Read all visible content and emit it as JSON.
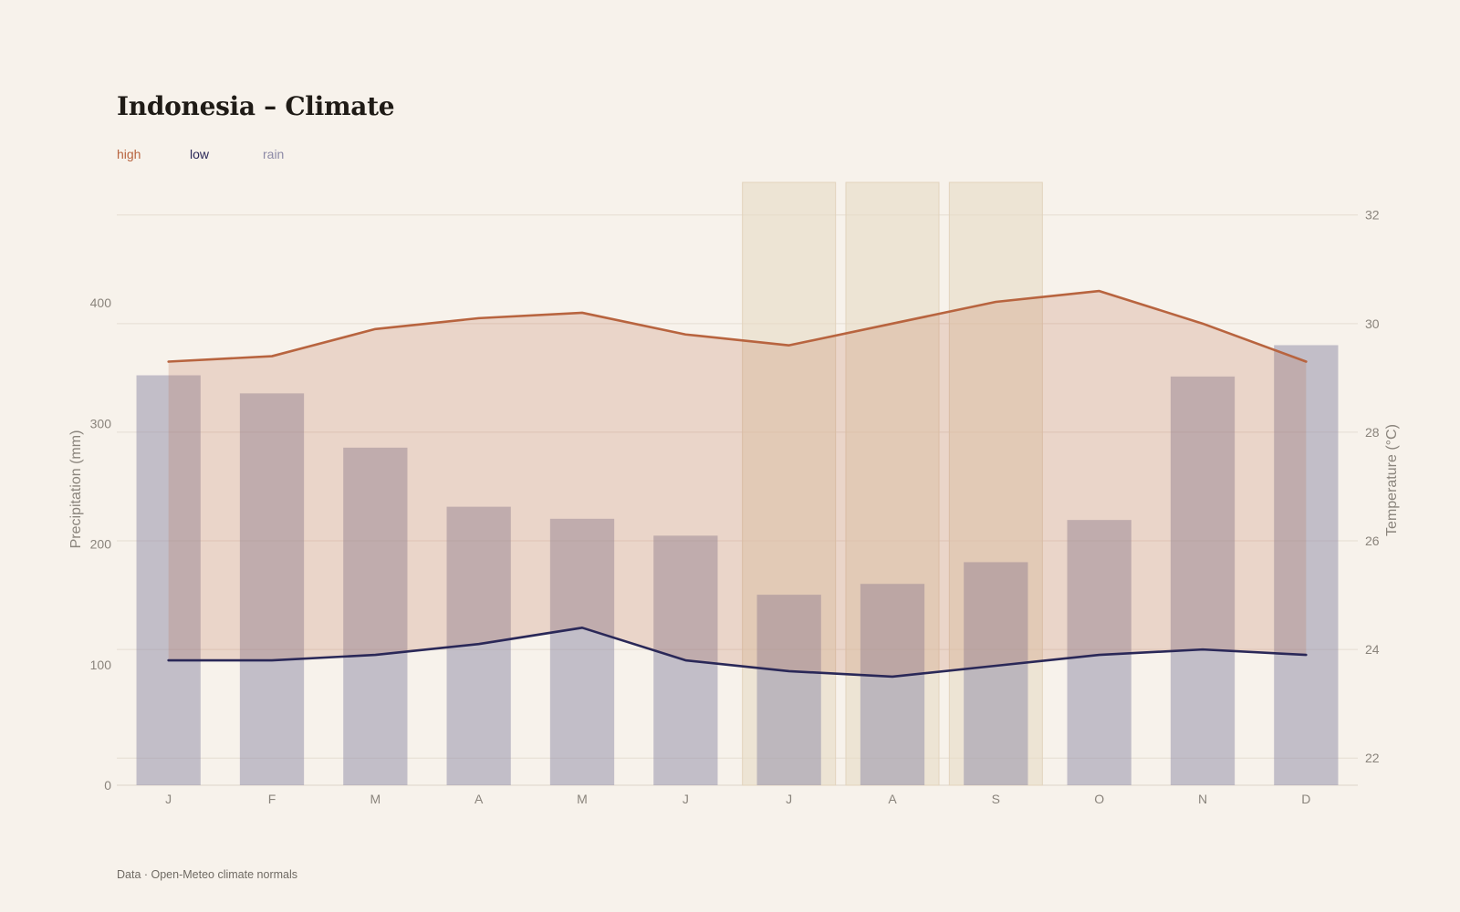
{
  "page": {
    "title": "Indonesia – Climate",
    "source": "Data · Open-Meteo climate normals"
  },
  "legend": [
    {
      "label": "high",
      "color": "#b8643f"
    },
    {
      "label": "low",
      "color": "#2a2858"
    },
    {
      "label": "rain",
      "color": "#8d8aa6"
    }
  ],
  "chart_data": {
    "type": "bar",
    "title": "Indonesia – Climate",
    "categories": [
      "J",
      "F",
      "M",
      "A",
      "M",
      "J",
      "J",
      "A",
      "S",
      "O",
      "N",
      "D"
    ],
    "highlight_categories": [
      "J",
      "A",
      "S"
    ],
    "highlight_indices": [
      6,
      7,
      8
    ],
    "y_left": {
      "label": "Precipitation (mm)",
      "ylim": [
        0,
        500
      ],
      "ticks": [
        0,
        100,
        200,
        300,
        400
      ]
    },
    "y_right": {
      "label": "Temperature (°C)",
      "ylim": [
        21.5,
        32.6
      ],
      "ticks": [
        22,
        24,
        26,
        28,
        30,
        32
      ]
    },
    "grid": true,
    "legend_position": "top-left",
    "series": [
      {
        "name": "rain",
        "type": "bar",
        "axis": "left",
        "color": "#8d8aa6",
        "values": [
          340,
          325,
          280,
          231,
          221,
          207,
          158,
          167,
          185,
          220,
          339,
          365
        ]
      },
      {
        "name": "high",
        "type": "line",
        "axis": "right",
        "color": "#b8643f",
        "values": [
          29.3,
          29.4,
          29.9,
          30.1,
          30.2,
          29.8,
          29.6,
          30.0,
          30.4,
          30.6,
          30.0,
          29.3
        ]
      },
      {
        "name": "low",
        "type": "line",
        "axis": "right",
        "color": "#2a2858",
        "values": [
          23.8,
          23.8,
          23.9,
          24.1,
          24.4,
          23.8,
          23.6,
          23.5,
          23.7,
          23.9,
          24.0,
          23.9
        ]
      }
    ]
  }
}
